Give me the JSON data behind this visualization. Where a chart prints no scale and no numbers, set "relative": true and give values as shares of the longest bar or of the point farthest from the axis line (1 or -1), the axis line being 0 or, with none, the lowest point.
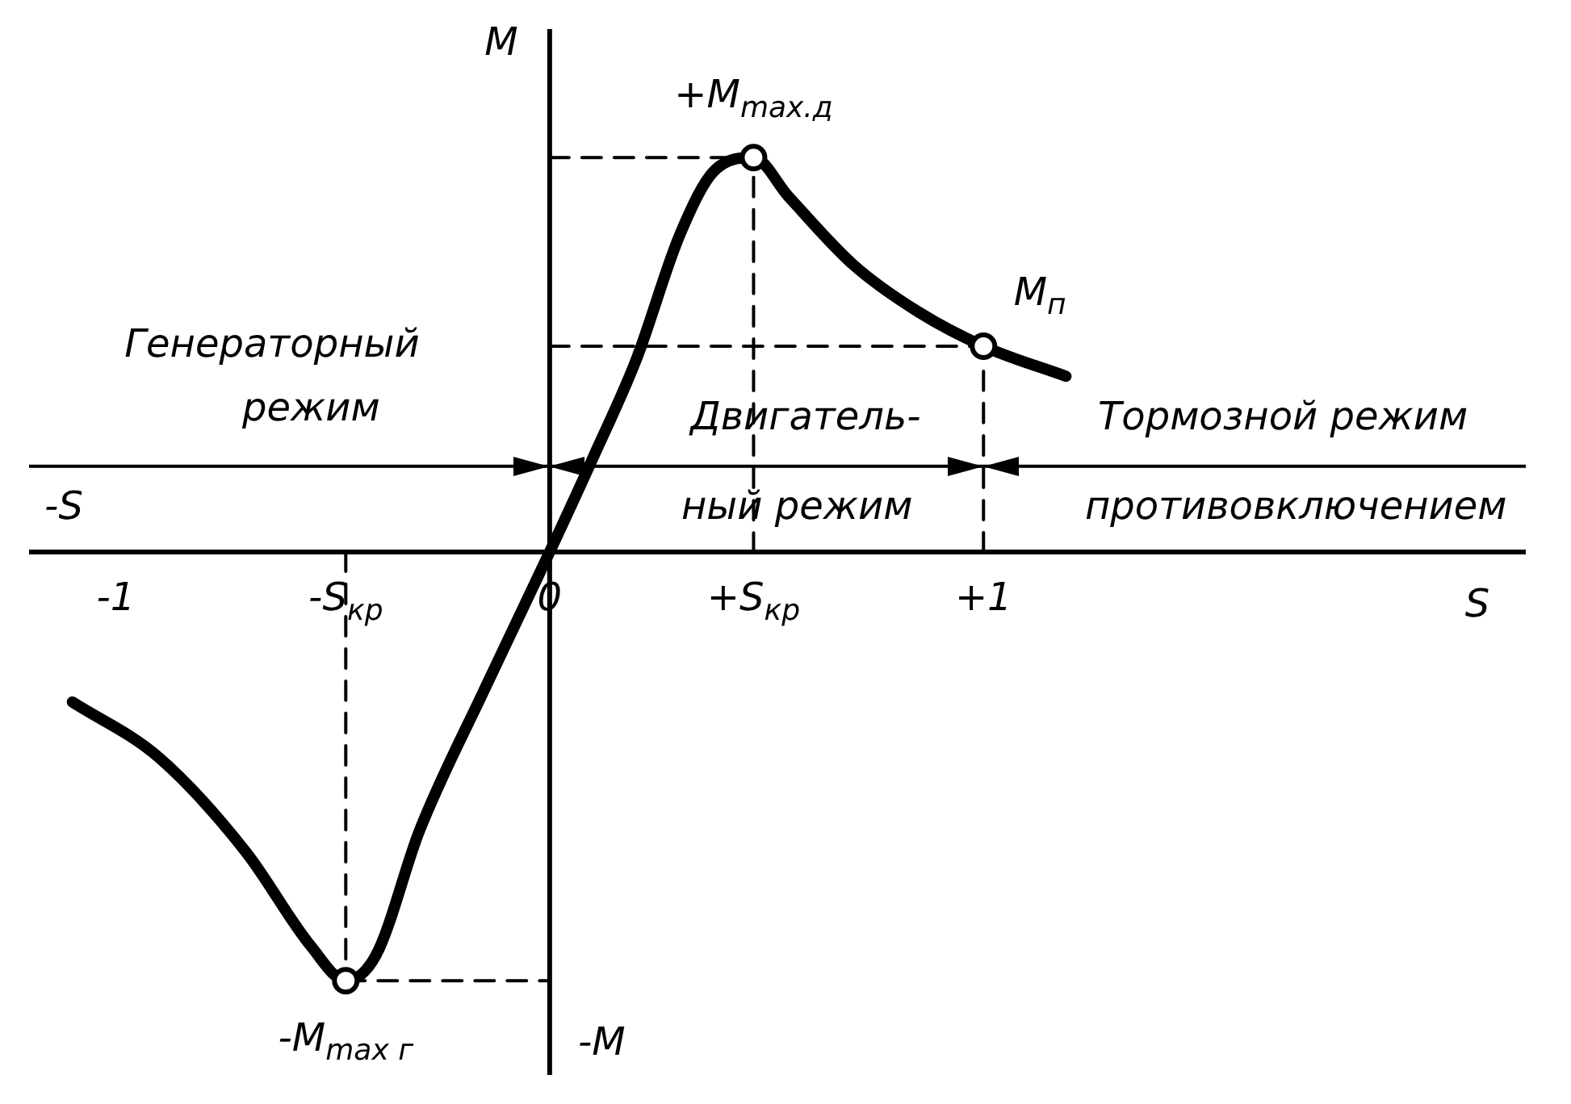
{
  "chart_data": {
    "type": "line",
    "relative": true,
    "xlabel": "S",
    "ylabel": "M",
    "xlim": [
      -1.2,
      2.25
    ],
    "xticks": [
      -1,
      {
        "value": -0.47,
        "label": "-S$_{кр}$"
      },
      0,
      {
        "value": 0.47,
        "label": "+S$_{кр}$"
      },
      {
        "value": 1,
        "label": "+1"
      }
    ],
    "legend": false,
    "ref_lines": [
      {
        "axis": "y",
        "value": 0.2,
        "color": "#000000",
        "line_style": "solid"
      }
    ],
    "series": [
      {
        "color": "#000000",
        "marker": "none",
        "line_style": "solid",
        "x": [
          -1.1,
          -0.9,
          -0.7,
          -0.55,
          -0.47,
          -0.4,
          -0.3,
          -0.15,
          0,
          0.1,
          0.2,
          0.3,
          0.38,
          0.47,
          0.55,
          0.7,
          0.85,
          1,
          1.19
        ],
        "values": [
          -0.35,
          -0.48,
          -0.7,
          -0.92,
          -1,
          -0.94,
          -0.65,
          -0.32,
          0,
          0.22,
          0.45,
          0.74,
          0.89,
          0.92,
          0.83,
          0.67,
          0.56,
          0.48,
          0.41
        ]
      },
      {
        "type": "line",
        "color": "#000000",
        "marker": "none",
        "line_style": "dashed",
        "x": [
          -0.47,
          -0.47
        ],
        "values": [
          0,
          -1
        ]
      },
      {
        "type": "line",
        "color": "#000000",
        "marker": "none",
        "line_style": "dashed",
        "x": [
          -0.47,
          0
        ],
        "values": [
          -1,
          -1
        ]
      },
      {
        "type": "line",
        "color": "#000000",
        "marker": "none",
        "line_style": "dashed",
        "x": [
          0.47,
          0.47
        ],
        "values": [
          0,
          0.92
        ]
      },
      {
        "type": "line",
        "color": "#000000",
        "marker": "none",
        "line_style": "dashed",
        "x": [
          0,
          0.47
        ],
        "values": [
          0.92,
          0.92
        ]
      },
      {
        "type": "line",
        "color": "#000000",
        "marker": "none",
        "line_style": "dashed",
        "x": [
          1,
          1
        ],
        "values": [
          0,
          0.48
        ]
      },
      {
        "type": "line",
        "color": "#000000",
        "marker": "none",
        "line_style": "dashed",
        "x": [
          0,
          1
        ],
        "values": [
          0.48,
          0.48
        ]
      },
      {
        "type": "scatter",
        "color": "#000000",
        "marker": "circle",
        "x": [
          -0.47,
          0.47,
          1
        ],
        "values": [
          -1,
          0.92,
          0.48
        ]
      }
    ],
    "annotations": [
      "+M$_{max.д}$",
      "M$_{п}$",
      "-M$_{max г}$",
      "Генераторный",
      "режим",
      "Двигатель-",
      "ный режим",
      "Тормозной режим",
      "противовключением",
      "-S",
      "-M"
    ]
  }
}
